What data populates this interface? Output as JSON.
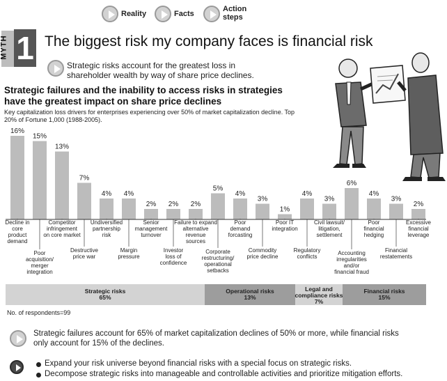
{
  "nav": [
    {
      "label": "Reality"
    },
    {
      "label": "Facts"
    },
    {
      "label": "Action steps"
    }
  ],
  "myth": {
    "tab": "MYTH",
    "number": "1"
  },
  "title": "The biggest risk my company faces is financial risk",
  "subtitle": "Strategic risks account for the greatest loss in shareholder wealth by way of share price declines.",
  "chart_heading": "Strategic failures and the inability to access risks in strategies have the greatest impact on share price declines",
  "chart_subtitle": "Key capitalization loss drivers for enterprises experiencing over 50% of market capitalization decline. Top 20% of Fortune 1,000 (1988-2005).",
  "chart_data": {
    "type": "bar",
    "unit": "%",
    "ylim": [
      0,
      16
    ],
    "categories": [
      "Decline in core product demand",
      "Poor acquisition/ merger integration",
      "Competitor infringement on core market",
      "Destructive price war",
      "Undiversified partnership risk",
      "Margin pressure",
      "Senior management turnover",
      "Investor loss of confidence",
      "Failure to expand alternative revenue sources",
      "Corporate restructuring/ operational setbacks",
      "Poor demand forcasting",
      "Commodity price decline",
      "Poor IT integration",
      "Regulatory conflicts",
      "Civil lawsuit/ litigation, settlement",
      "Accounting irregularities and/or financial fraud",
      "Poor financial hedging",
      "Financial restatements",
      "Excessive financial leverage"
    ],
    "values": [
      16,
      15,
      13,
      7,
      4,
      4,
      2,
      2,
      2,
      5,
      4,
      3,
      1,
      4,
      3,
      6,
      4,
      3,
      2
    ],
    "groups": [
      {
        "name": "Strategic risks",
        "share": "65%"
      },
      {
        "name": "Operational risks",
        "share": "13%"
      },
      {
        "name": "Legal and compliance risks",
        "share": "7%"
      },
      {
        "name": "Financial risks",
        "share": "15%"
      }
    ]
  },
  "respondents": "No. of respondents=99",
  "finding": "Strategic failures account for 65% of market capitalization declines of 50% or more, while financial risks only account for 15% of the declines.",
  "actions": [
    "Expand your risk universe beyond financial risks with a special focus on strategic risks.",
    "Decompose strategic risks into manageable and controllable activities and prioritize mitigation efforts."
  ],
  "colors": {
    "bar": "#bcbcbc",
    "band_dark": "#9d9d9d",
    "band_light": "#d3d3d3",
    "accent": "#4a4a4a"
  }
}
